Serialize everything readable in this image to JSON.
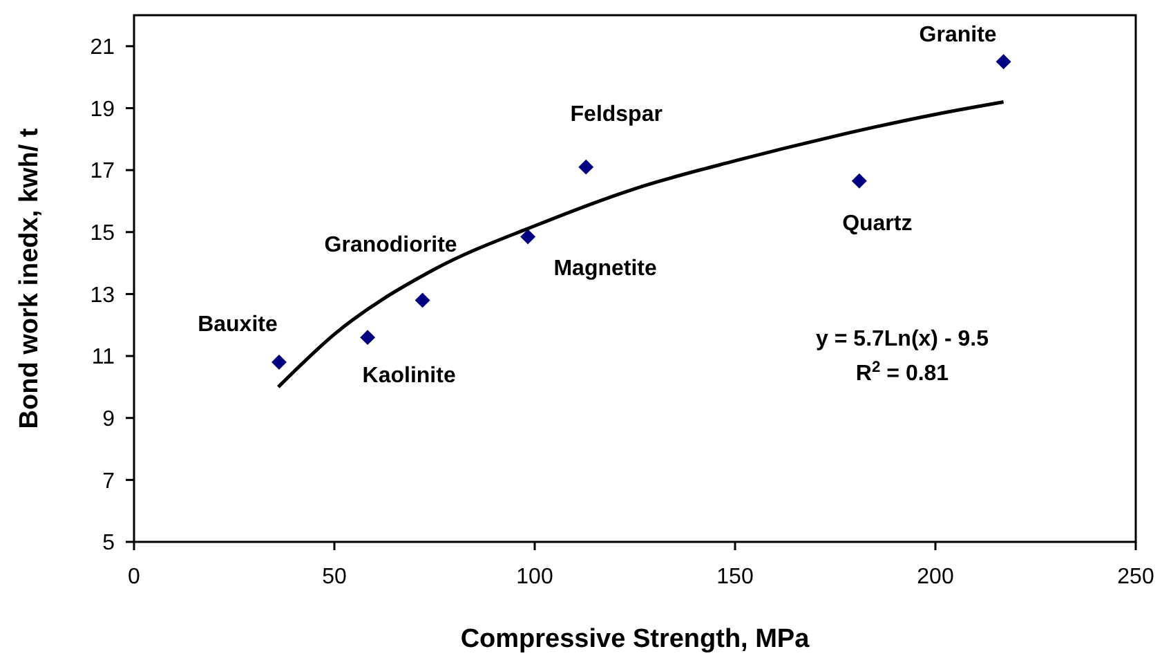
{
  "chart_data": {
    "type": "scatter",
    "xlabel": "Compressive Strength, MPa",
    "ylabel": "Bond work inedx, kwh/ t",
    "xlim": [
      0,
      250
    ],
    "xticks": [
      0,
      50,
      100,
      150,
      200,
      250
    ],
    "ylim": [
      5,
      22
    ],
    "yticks": [
      5,
      7,
      9,
      11,
      13,
      15,
      17,
      19,
      21
    ],
    "marker": "diamond",
    "grid": false,
    "series": [
      {
        "color": "#000080",
        "x": [
          36.2,
          58.3,
          72,
          98.3,
          112.8,
          181,
          217
        ],
        "values": [
          10.8,
          11.6,
          12.8,
          14.85,
          17.1,
          16.65,
          20.5
        ]
      },
      {
        "type": "line",
        "color": "#000000",
        "marker": "none",
        "x": [
          36,
          50,
          75,
          100,
          125,
          150,
          175,
          200,
          217
        ],
        "values": [
          10.0,
          11.7,
          13.8,
          15.2,
          16.4,
          17.3,
          18.1,
          18.8,
          19.2
        ]
      }
    ],
    "annotations": [
      {
        "text": "Bauxite",
        "x": 36.2,
        "y": 10.8
      },
      {
        "text": "Kaolinite",
        "x": 58.3,
        "y": 11.6
      },
      {
        "text": "Granodiorite",
        "x": 72,
        "y": 12.8
      },
      {
        "text": "Magnetite",
        "x": 98.3,
        "y": 14.85
      },
      {
        "text": "Feldspar",
        "x": 112.8,
        "y": 17.1
      },
      {
        "text": "Quartz",
        "x": 181,
        "y": 16.65
      },
      {
        "text": "Granite",
        "x": 217,
        "y": 20.5
      },
      "y = 5.7Ln(x) - 9.5",
      "R$^{2}$ = 0.81"
    ]
  }
}
